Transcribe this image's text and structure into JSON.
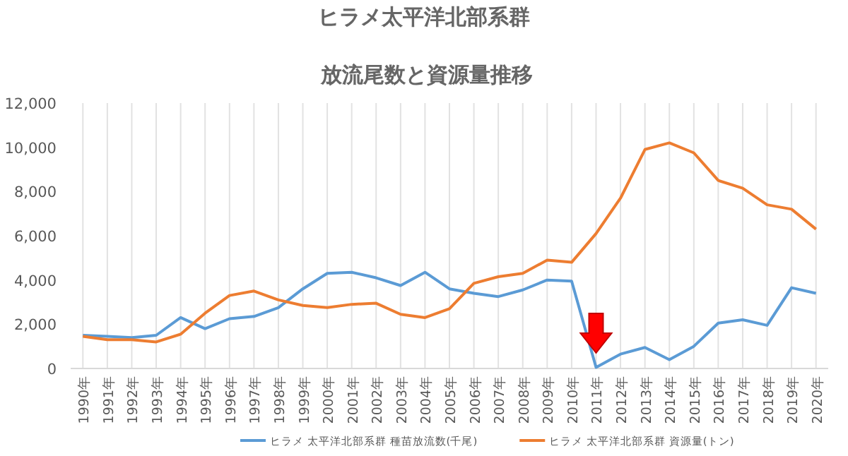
{
  "chart_data": {
    "type": "line",
    "title": "ヒラメ太平洋北部系群",
    "subtitle": "放流尾数と資源量推移",
    "categories": [
      "1990年",
      "1991年",
      "1992年",
      "1993年",
      "1994年",
      "1995年",
      "1996年",
      "1997年",
      "1998年",
      "1999年",
      "2000年",
      "2001年",
      "2002年",
      "2003年",
      "2004年",
      "2005年",
      "2006年",
      "2007年",
      "2008年",
      "2009年",
      "2010年",
      "2011年",
      "2012年",
      "2013年",
      "2014年",
      "2015年",
      "2016年",
      "2017年",
      "2018年",
      "2019年",
      "2020年"
    ],
    "series": [
      {
        "name": "ヒラメ 太平洋北部系群 種苗放流数(千尾)",
        "color": "#5b9bd5",
        "values": [
          1500,
          1450,
          1400,
          1500,
          2300,
          1800,
          2250,
          2350,
          2750,
          3600,
          4300,
          4350,
          4100,
          3750,
          4350,
          3600,
          3400,
          3250,
          3550,
          4000,
          3950,
          50,
          650,
          950,
          400,
          1000,
          2050,
          2200,
          1950,
          3650,
          3400
        ]
      },
      {
        "name": "ヒラメ 太平洋北部系群 資源量(トン)",
        "color": "#ed7d31",
        "values": [
          1450,
          1300,
          1300,
          1200,
          1550,
          2500,
          3300,
          3500,
          3100,
          2850,
          2750,
          2900,
          2950,
          2450,
          2300,
          2700,
          3850,
          4150,
          4300,
          4900,
          4800,
          6100,
          7700,
          9900,
          10200,
          9750,
          8500,
          8150,
          7400,
          7200,
          6300
        ]
      }
    ],
    "ylim": [
      0,
      12000
    ],
    "yticks": [
      {
        "value": 0,
        "label": "0"
      },
      {
        "value": 2000,
        "label": "2,000"
      },
      {
        "value": 4000,
        "label": "4,000"
      },
      {
        "value": 6000,
        "label": "6,000"
      },
      {
        "value": 8000,
        "label": "8,000"
      },
      {
        "value": 10000,
        "label": "10,000"
      },
      {
        "value": 12000,
        "label": "12,000"
      }
    ],
    "grid": "x",
    "legend": "bottom",
    "marker": "none",
    "line_style": "solid"
  }
}
